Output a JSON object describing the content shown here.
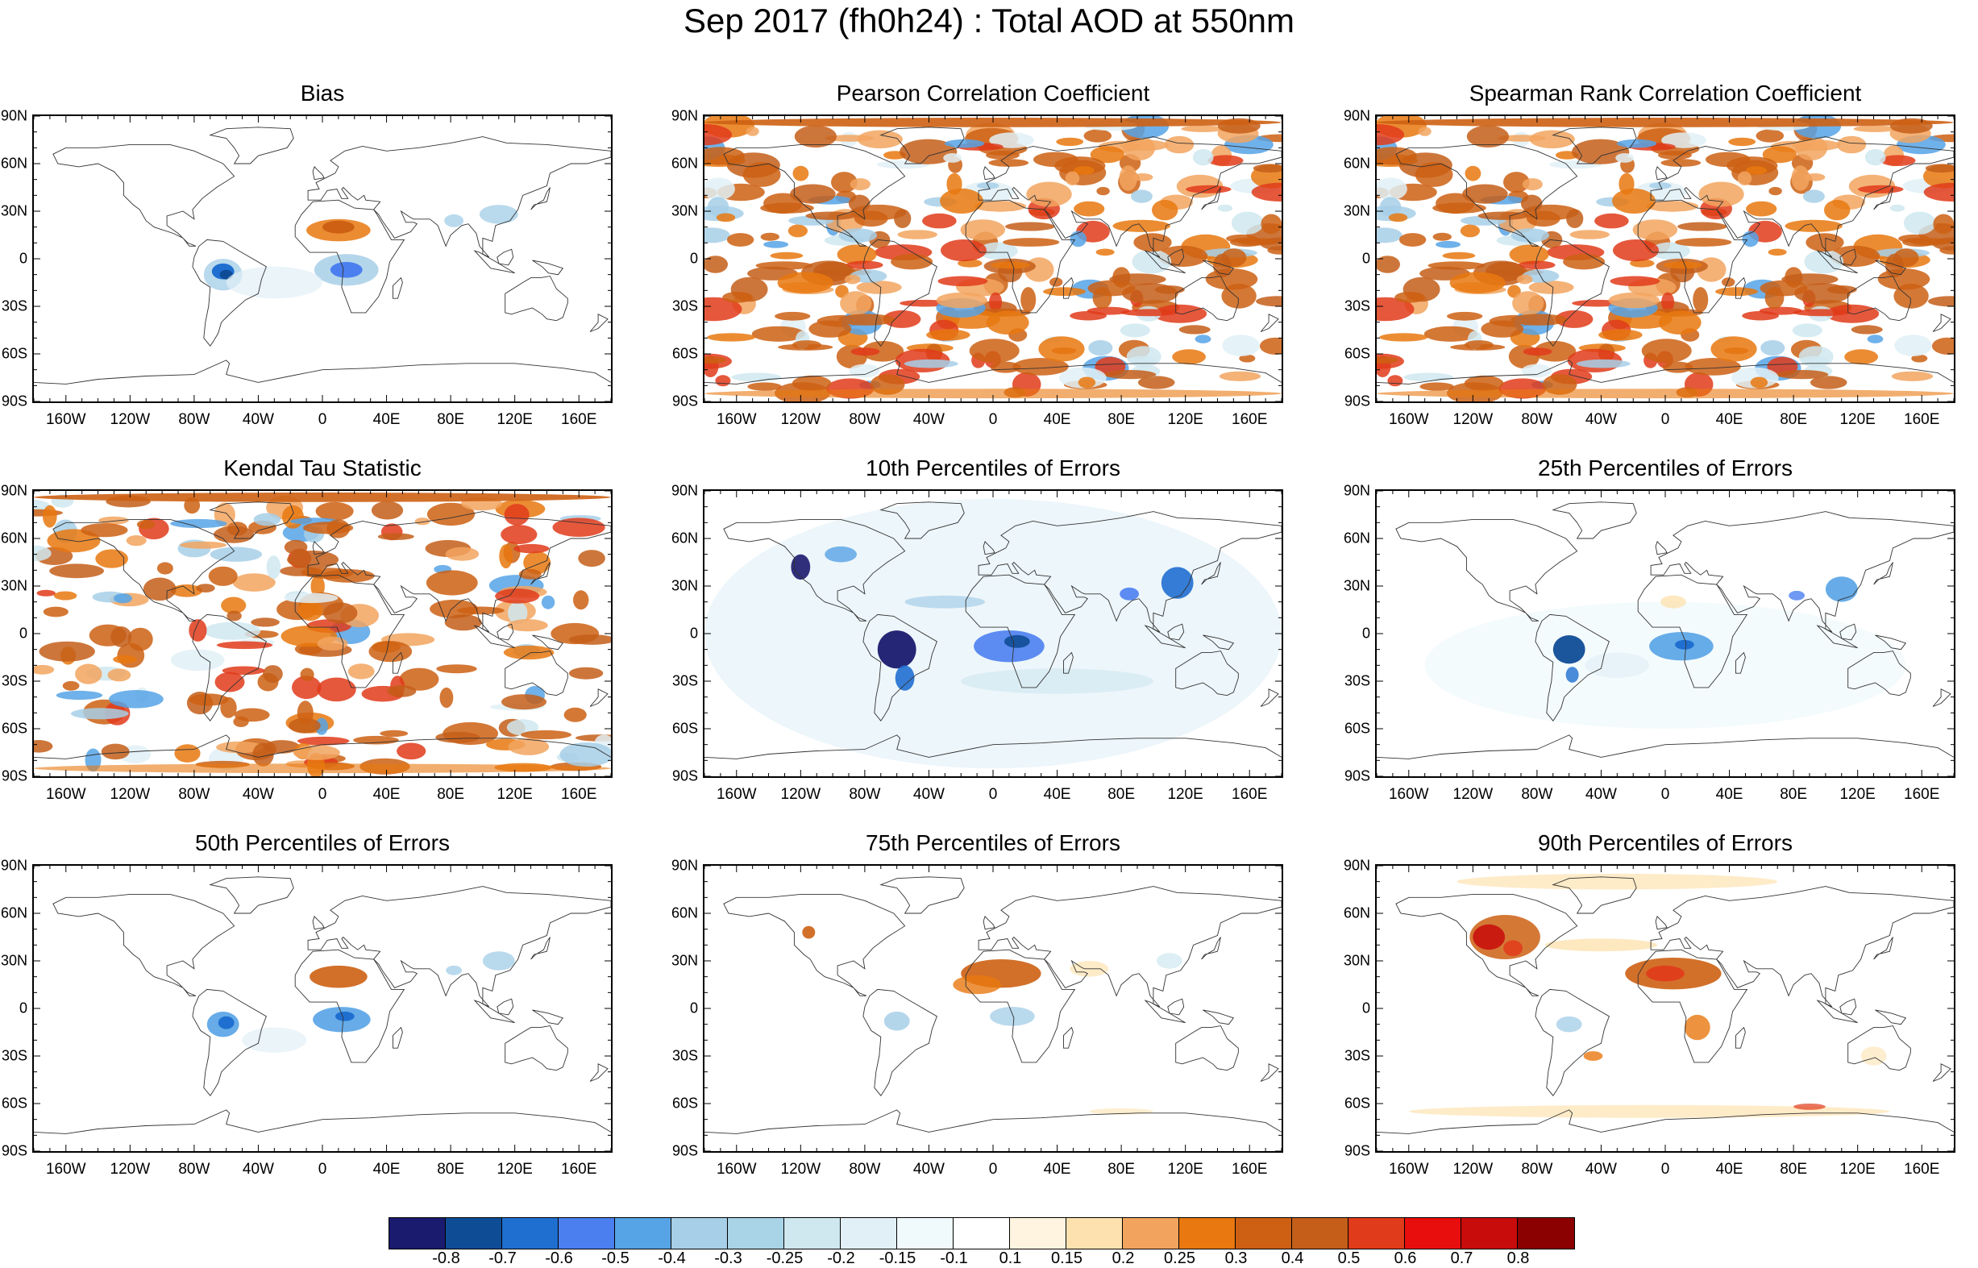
{
  "title": "Sep 2017 (fh0h24) : Total AOD at 550nm",
  "lat_labels": [
    "90N",
    "60N",
    "30N",
    "0",
    "30S",
    "60S",
    "90S"
  ],
  "lon_labels": [
    "160W",
    "120W",
    "80W",
    "40W",
    "0",
    "40E",
    "80E",
    "120E",
    "160E"
  ],
  "panels": [
    {
      "title": "Bias",
      "pattern": "bias"
    },
    {
      "title": "Pearson Correlation Coefficient",
      "pattern": "corr"
    },
    {
      "title": "Spearman Rank Correlation Coefficient",
      "pattern": "corr"
    },
    {
      "title": "Kendal Tau Statistic",
      "pattern": "kendall"
    },
    {
      "title": "10th Percentiles of Errors",
      "pattern": "p10"
    },
    {
      "title": "25th Percentiles of Errors",
      "pattern": "p25"
    },
    {
      "title": "50th Percentiles of Errors",
      "pattern": "p50"
    },
    {
      "title": "75th Percentiles of Errors",
      "pattern": "p75"
    },
    {
      "title": "90th Percentiles of Errors",
      "pattern": "p90"
    }
  ],
  "colorbar": {
    "colors": [
      "#1a1a6e",
      "#0f4c96",
      "#1f6fd0",
      "#4b7ff0",
      "#56a3e6",
      "#a7cfe8",
      "#a9d3e6",
      "#cfe8f0",
      "#e1f0f6",
      "#f0f9fb",
      "#ffffff",
      "#fff4e0",
      "#fde2b0",
      "#f2a45f",
      "#e8780f",
      "#cd6013",
      "#c45e19",
      "#e03b1a",
      "#e80e0e",
      "#c80b0b",
      "#8b0000"
    ],
    "labels": [
      "-0.8",
      "-0.7",
      "-0.6",
      "-0.5",
      "-0.4",
      "-0.3",
      "-0.25",
      "-0.2",
      "-0.15",
      "-0.1",
      "0.1",
      "0.15",
      "0.2",
      "0.25",
      "0.3",
      "0.4",
      "0.5",
      "0.6",
      "0.7",
      "0.8"
    ]
  }
}
